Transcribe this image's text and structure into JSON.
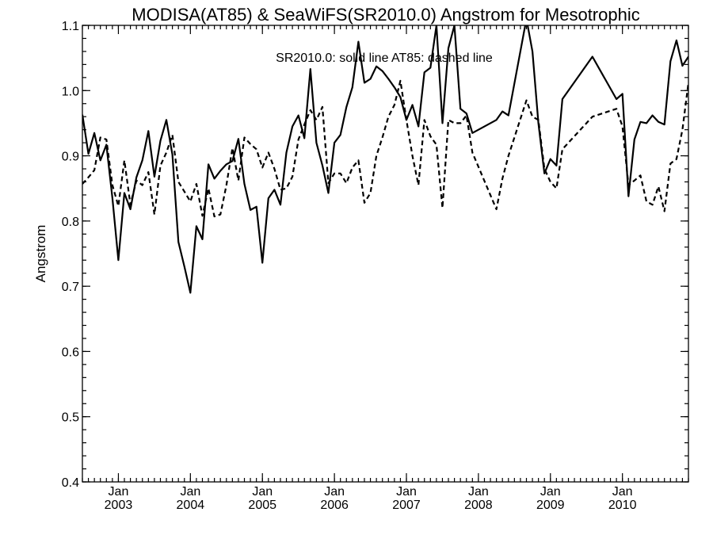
{
  "chart_data": {
    "type": "line",
    "title": "MODISA(AT85) & SeaWiFS(SR2010.0)  Angstrom for Mesotrophic",
    "annotation": "SR2010.0: solid line   AT85: dashed line",
    "ylabel": "Angstrom",
    "xlabel": "",
    "x_range": [
      "2002-07",
      "2010-12"
    ],
    "ylim": [
      0.4,
      1.1
    ],
    "y_ticks": [
      0.4,
      0.5,
      0.6,
      0.7,
      0.8,
      0.9,
      1.0,
      1.1
    ],
    "y_tick_labels": [
      "0.4",
      "0.5",
      "0.6",
      "0.7",
      "0.8",
      "0.9",
      "1.0",
      "1.1"
    ],
    "x_major_ticks": [
      {
        "date": "2003-01",
        "month": "Jan",
        "year": "2003"
      },
      {
        "date": "2004-01",
        "month": "Jan",
        "year": "2004"
      },
      {
        "date": "2005-01",
        "month": "Jan",
        "year": "2005"
      },
      {
        "date": "2006-01",
        "month": "Jan",
        "year": "2006"
      },
      {
        "date": "2007-01",
        "month": "Jan",
        "year": "2007"
      },
      {
        "date": "2008-01",
        "month": "Jan",
        "year": "2008"
      },
      {
        "date": "2009-01",
        "month": "Jan",
        "year": "2009"
      },
      {
        "date": "2010-01",
        "month": "Jan",
        "year": "2010"
      }
    ],
    "grid": false,
    "series": [
      {
        "style": "solid",
        "color": "#000000",
        "points": [
          [
            "2002-07",
            0.963
          ],
          [
            "2002-08",
            0.903
          ],
          [
            "2002-09",
            0.935
          ],
          [
            "2002-10",
            0.893
          ],
          [
            "2002-11",
            0.917
          ],
          [
            "2002-12",
            0.835
          ],
          [
            "2003-01",
            0.74
          ],
          [
            "2003-02",
            0.843
          ],
          [
            "2003-03",
            0.818
          ],
          [
            "2003-04",
            0.867
          ],
          [
            "2003-05",
            0.893
          ],
          [
            "2003-06",
            0.938
          ],
          [
            "2003-07",
            0.868
          ],
          [
            "2003-08",
            0.923
          ],
          [
            "2003-09",
            0.955
          ],
          [
            "2003-10",
            0.902
          ],
          [
            "2003-11",
            0.768
          ],
          [
            "2003-12",
            0.73
          ],
          [
            "2004-01",
            0.69
          ],
          [
            "2004-02",
            0.792
          ],
          [
            "2004-03",
            0.772
          ],
          [
            "2004-04",
            0.887
          ],
          [
            "2004-05",
            0.865
          ],
          [
            "2004-06",
            0.877
          ],
          [
            "2004-07",
            0.887
          ],
          [
            "2004-08",
            0.892
          ],
          [
            "2004-09",
            0.926
          ],
          [
            "2004-10",
            0.857
          ],
          [
            "2004-11",
            0.817
          ],
          [
            "2004-12",
            0.822
          ],
          [
            "2005-01",
            0.736
          ],
          [
            "2005-02",
            0.835
          ],
          [
            "2005-03",
            0.848
          ],
          [
            "2005-04",
            0.825
          ],
          [
            "2005-05",
            0.905
          ],
          [
            "2005-06",
            0.945
          ],
          [
            "2005-07",
            0.962
          ],
          [
            "2005-08",
            0.927
          ],
          [
            "2005-09",
            1.033
          ],
          [
            "2005-10",
            0.92
          ],
          [
            "2005-11",
            0.885
          ],
          [
            "2005-12",
            0.843
          ],
          [
            "2006-01",
            0.92
          ],
          [
            "2006-02",
            0.932
          ],
          [
            "2006-03",
            0.975
          ],
          [
            "2006-04",
            1.005
          ],
          [
            "2006-05",
            1.075
          ],
          [
            "2006-06",
            1.012
          ],
          [
            "2006-07",
            1.018
          ],
          [
            "2006-08",
            1.037
          ],
          [
            "2006-09",
            1.03
          ],
          [
            "2006-10",
            1.018
          ],
          [
            "2006-11",
            1.005
          ],
          [
            "2006-12",
            0.99
          ],
          [
            "2007-01",
            0.955
          ],
          [
            "2007-02",
            0.978
          ],
          [
            "2007-03",
            0.945
          ],
          [
            "2007-04",
            1.028
          ],
          [
            "2007-05",
            1.035
          ],
          [
            "2007-06",
            1.1
          ],
          [
            "2007-07",
            0.95
          ],
          [
            "2007-08",
            1.065
          ],
          [
            "2007-09",
            1.1
          ],
          [
            "2007-10",
            0.972
          ],
          [
            "2007-11",
            0.965
          ],
          [
            "2007-12",
            0.935
          ],
          [
            "2008-04",
            0.955
          ],
          [
            "2008-05",
            0.968
          ],
          [
            "2008-06",
            0.962
          ],
          [
            "2008-09",
            1.11
          ],
          [
            "2008-10",
            1.06
          ],
          [
            "2008-11",
            0.95
          ],
          [
            "2008-12",
            0.873
          ],
          [
            "2009-01",
            0.895
          ],
          [
            "2009-02",
            0.885
          ],
          [
            "2009-03",
            0.987
          ],
          [
            "2009-08",
            1.052
          ],
          [
            "2009-12",
            0.987
          ],
          [
            "2010-01",
            0.995
          ],
          [
            "2010-02",
            0.838
          ],
          [
            "2010-03",
            0.925
          ],
          [
            "2010-04",
            0.952
          ],
          [
            "2010-05",
            0.95
          ],
          [
            "2010-06",
            0.962
          ],
          [
            "2010-07",
            0.952
          ],
          [
            "2010-08",
            0.948
          ],
          [
            "2010-09",
            1.045
          ],
          [
            "2010-10",
            1.077
          ],
          [
            "2010-11",
            1.038
          ],
          [
            "2010-12",
            1.052
          ]
        ]
      },
      {
        "style": "dashed",
        "color": "#000000",
        "points": [
          [
            "2002-07",
            0.857
          ],
          [
            "2002-08",
            0.867
          ],
          [
            "2002-09",
            0.878
          ],
          [
            "2002-10",
            0.928
          ],
          [
            "2002-11",
            0.925
          ],
          [
            "2002-12",
            0.855
          ],
          [
            "2003-01",
            0.823
          ],
          [
            "2003-02",
            0.893
          ],
          [
            "2003-03",
            0.825
          ],
          [
            "2003-04",
            0.862
          ],
          [
            "2003-05",
            0.855
          ],
          [
            "2003-06",
            0.875
          ],
          [
            "2003-07",
            0.81
          ],
          [
            "2003-08",
            0.885
          ],
          [
            "2003-09",
            0.905
          ],
          [
            "2003-10",
            0.932
          ],
          [
            "2003-11",
            0.86
          ],
          [
            "2003-12",
            0.845
          ],
          [
            "2004-01",
            0.83
          ],
          [
            "2004-02",
            0.857
          ],
          [
            "2004-03",
            0.808
          ],
          [
            "2004-04",
            0.85
          ],
          [
            "2004-05",
            0.807
          ],
          [
            "2004-06",
            0.81
          ],
          [
            "2004-07",
            0.855
          ],
          [
            "2004-08",
            0.912
          ],
          [
            "2004-09",
            0.862
          ],
          [
            "2004-10",
            0.928
          ],
          [
            "2004-11",
            0.918
          ],
          [
            "2004-12",
            0.91
          ],
          [
            "2005-01",
            0.882
          ],
          [
            "2005-02",
            0.905
          ],
          [
            "2005-03",
            0.88
          ],
          [
            "2005-04",
            0.848
          ],
          [
            "2005-05",
            0.85
          ],
          [
            "2005-06",
            0.868
          ],
          [
            "2005-07",
            0.925
          ],
          [
            "2005-08",
            0.948
          ],
          [
            "2005-09",
            0.97
          ],
          [
            "2005-10",
            0.955
          ],
          [
            "2005-11",
            0.975
          ],
          [
            "2005-12",
            0.858
          ],
          [
            "2006-01",
            0.873
          ],
          [
            "2006-02",
            0.873
          ],
          [
            "2006-03",
            0.858
          ],
          [
            "2006-04",
            0.882
          ],
          [
            "2006-05",
            0.893
          ],
          [
            "2006-06",
            0.828
          ],
          [
            "2006-07",
            0.843
          ],
          [
            "2006-08",
            0.9
          ],
          [
            "2006-09",
            0.928
          ],
          [
            "2006-10",
            0.96
          ],
          [
            "2006-11",
            0.978
          ],
          [
            "2006-12",
            1.015
          ],
          [
            "2007-01",
            0.955
          ],
          [
            "2007-02",
            0.9
          ],
          [
            "2007-03",
            0.855
          ],
          [
            "2007-04",
            0.955
          ],
          [
            "2007-05",
            0.93
          ],
          [
            "2007-06",
            0.917
          ],
          [
            "2007-07",
            0.82
          ],
          [
            "2007-08",
            0.955
          ],
          [
            "2007-09",
            0.95
          ],
          [
            "2007-10",
            0.95
          ],
          [
            "2007-11",
            0.962
          ],
          [
            "2007-12",
            0.905
          ],
          [
            "2008-04",
            0.818
          ],
          [
            "2008-05",
            0.865
          ],
          [
            "2008-06",
            0.9
          ],
          [
            "2008-09",
            0.985
          ],
          [
            "2008-10",
            0.96
          ],
          [
            "2008-11",
            0.955
          ],
          [
            "2008-12",
            0.88
          ],
          [
            "2009-01",
            0.86
          ],
          [
            "2009-02",
            0.85
          ],
          [
            "2009-03",
            0.91
          ],
          [
            "2009-08",
            0.96
          ],
          [
            "2009-12",
            0.972
          ],
          [
            "2010-01",
            0.945
          ],
          [
            "2010-02",
            0.855
          ],
          [
            "2010-03",
            0.862
          ],
          [
            "2010-04",
            0.87
          ],
          [
            "2010-05",
            0.83
          ],
          [
            "2010-06",
            0.825
          ],
          [
            "2010-07",
            0.853
          ],
          [
            "2010-08",
            0.815
          ],
          [
            "2010-09",
            0.888
          ],
          [
            "2010-10",
            0.895
          ],
          [
            "2010-11",
            0.94
          ],
          [
            "2010-12",
            1.012
          ]
        ]
      }
    ]
  }
}
